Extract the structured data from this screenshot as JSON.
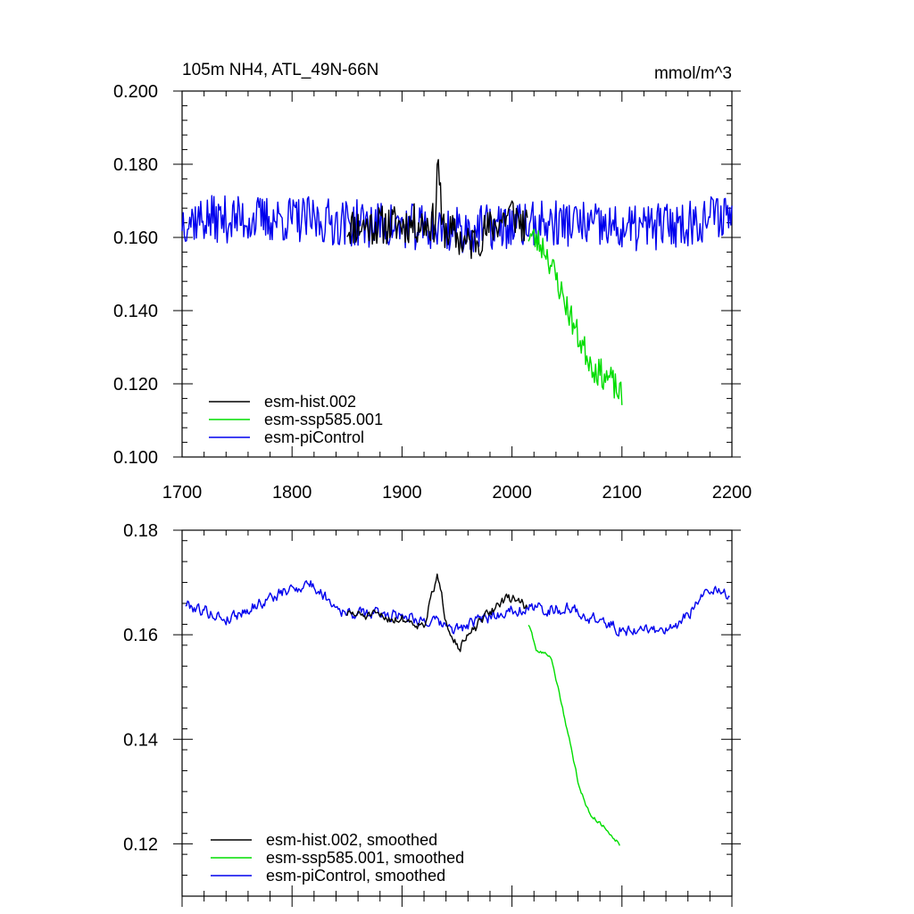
{
  "chart_data": [
    {
      "type": "line",
      "title": "105m NH4, ATL_49N-66N",
      "units": "mmol/m^3",
      "xlim": [
        1700,
        2200
      ],
      "ylim": [
        0.1,
        0.2
      ],
      "xticks": [
        1700,
        1800,
        1900,
        2000,
        2100,
        2200
      ],
      "xtick_labels": [
        "1700",
        "1800",
        "1900",
        "2000",
        "2100",
        "2200"
      ],
      "yticks": [
        0.1,
        0.12,
        0.14,
        0.16,
        0.18,
        0.2
      ],
      "ytick_labels": [
        "0.100",
        "0.120",
        "0.140",
        "0.160",
        "0.180",
        "0.200"
      ],
      "legend_position": "bottom-left",
      "series": [
        {
          "name": "esm-hist.002",
          "color": "#000000",
          "x_start": 1850,
          "x_end": 2014,
          "base": 0.1635,
          "noise": 0.0055,
          "seed": 11,
          "anchors": [
            [
              1850,
              0.163
            ],
            [
              1930,
              0.164
            ],
            [
              1933,
              0.183
            ],
            [
              1936,
              0.163
            ],
            [
              1960,
              0.158
            ],
            [
              2000,
              0.167
            ],
            [
              2014,
              0.162
            ]
          ]
        },
        {
          "name": "esm-ssp585.001",
          "color": "#00dd00",
          "x_start": 2015,
          "x_end": 2100,
          "base": 0.16,
          "noise": 0.004,
          "seed": 23,
          "anchors": [
            [
              2015,
              0.161
            ],
            [
              2030,
              0.157
            ],
            [
              2045,
              0.145
            ],
            [
              2060,
              0.133
            ],
            [
              2075,
              0.124
            ],
            [
              2090,
              0.121
            ],
            [
              2100,
              0.116
            ]
          ]
        },
        {
          "name": "esm-piControl",
          "color": "#0000ee",
          "x_start": 1700,
          "x_end": 2200,
          "base": 0.164,
          "noise": 0.0065,
          "seed": 37,
          "anchors": [
            [
              1700,
              0.165
            ],
            [
              1800,
              0.165
            ],
            [
              1900,
              0.163
            ],
            [
              1950,
              0.162
            ],
            [
              2050,
              0.164
            ],
            [
              2100,
              0.162
            ],
            [
              2160,
              0.164
            ],
            [
              2200,
              0.167
            ]
          ]
        }
      ]
    },
    {
      "type": "line",
      "title": "",
      "units": "",
      "xlim": [
        1700,
        2200
      ],
      "ylim": [
        0.11,
        0.18
      ],
      "xticks": [
        1700,
        1800,
        1900,
        2000,
        2100,
        2200
      ],
      "xtick_labels": [],
      "yticks": [
        0.12,
        0.14,
        0.16,
        0.18
      ],
      "ytick_labels": [
        "0.12",
        "0.14",
        "0.16",
        "0.18"
      ],
      "legend_position": "bottom-left",
      "series": [
        {
          "name": "esm-hist.002, smoothed",
          "color": "#000000",
          "x_start": 1850,
          "x_end": 2014,
          "base": 0.1635,
          "noise": 0.0018,
          "seed": 51,
          "anchors": [
            [
              1850,
              0.164
            ],
            [
              1900,
              0.163
            ],
            [
              1920,
              0.162
            ],
            [
              1932,
              0.171
            ],
            [
              1940,
              0.163
            ],
            [
              1952,
              0.1575
            ],
            [
              1970,
              0.162
            ],
            [
              1990,
              0.1665
            ],
            [
              2005,
              0.167
            ],
            [
              2014,
              0.165
            ]
          ]
        },
        {
          "name": "esm-ssp585.001, smoothed",
          "color": "#00dd00",
          "x_start": 2015,
          "x_end": 2098,
          "base": 0.16,
          "noise": 0.0007,
          "seed": 63,
          "anchors": [
            [
              2015,
              0.162
            ],
            [
              2022,
              0.157
            ],
            [
              2035,
              0.156
            ],
            [
              2045,
              0.147
            ],
            [
              2060,
              0.132
            ],
            [
              2070,
              0.126
            ],
            [
              2085,
              0.123
            ],
            [
              2098,
              0.12
            ]
          ]
        },
        {
          "name": "esm-piControl, smoothed",
          "color": "#0000ee",
          "x_start": 1703,
          "x_end": 2198,
          "base": 0.164,
          "noise": 0.0022,
          "seed": 79,
          "anchors": [
            [
              1703,
              0.166
            ],
            [
              1740,
              0.163
            ],
            [
              1780,
              0.167
            ],
            [
              1815,
              0.17
            ],
            [
              1850,
              0.164
            ],
            [
              1900,
              0.164
            ],
            [
              1950,
              0.161
            ],
            [
              2000,
              0.165
            ],
            [
              2050,
              0.165
            ],
            [
              2100,
              0.161
            ],
            [
              2150,
              0.161
            ],
            [
              2175,
              0.168
            ],
            [
              2198,
              0.168
            ]
          ]
        }
      ]
    }
  ]
}
